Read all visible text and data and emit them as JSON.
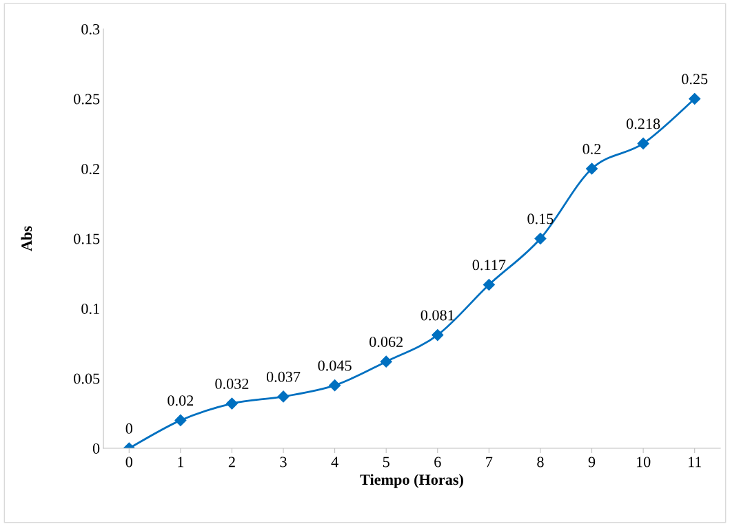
{
  "chart_data": {
    "type": "line",
    "xlabel": "Tiempo (Horas)",
    "ylabel": "Abs",
    "categories": [
      "0",
      "1",
      "2",
      "3",
      "4",
      "5",
      "6",
      "7",
      "8",
      "9",
      "10",
      "11"
    ],
    "series": [
      {
        "color": "#0070c0",
        "values": [
          0,
          0.02,
          0.032,
          0.037,
          0.045,
          0.062,
          0.081,
          0.117,
          0.15,
          0.2,
          0.218,
          0.25
        ]
      }
    ],
    "ylim": [
      0,
      0.3
    ],
    "yticks": [
      0,
      0.05,
      0.1,
      0.15,
      0.2,
      0.25,
      0.3
    ],
    "grid": false,
    "legend": false,
    "marker": "diamond",
    "line_style": "solid",
    "data_labels": true
  }
}
